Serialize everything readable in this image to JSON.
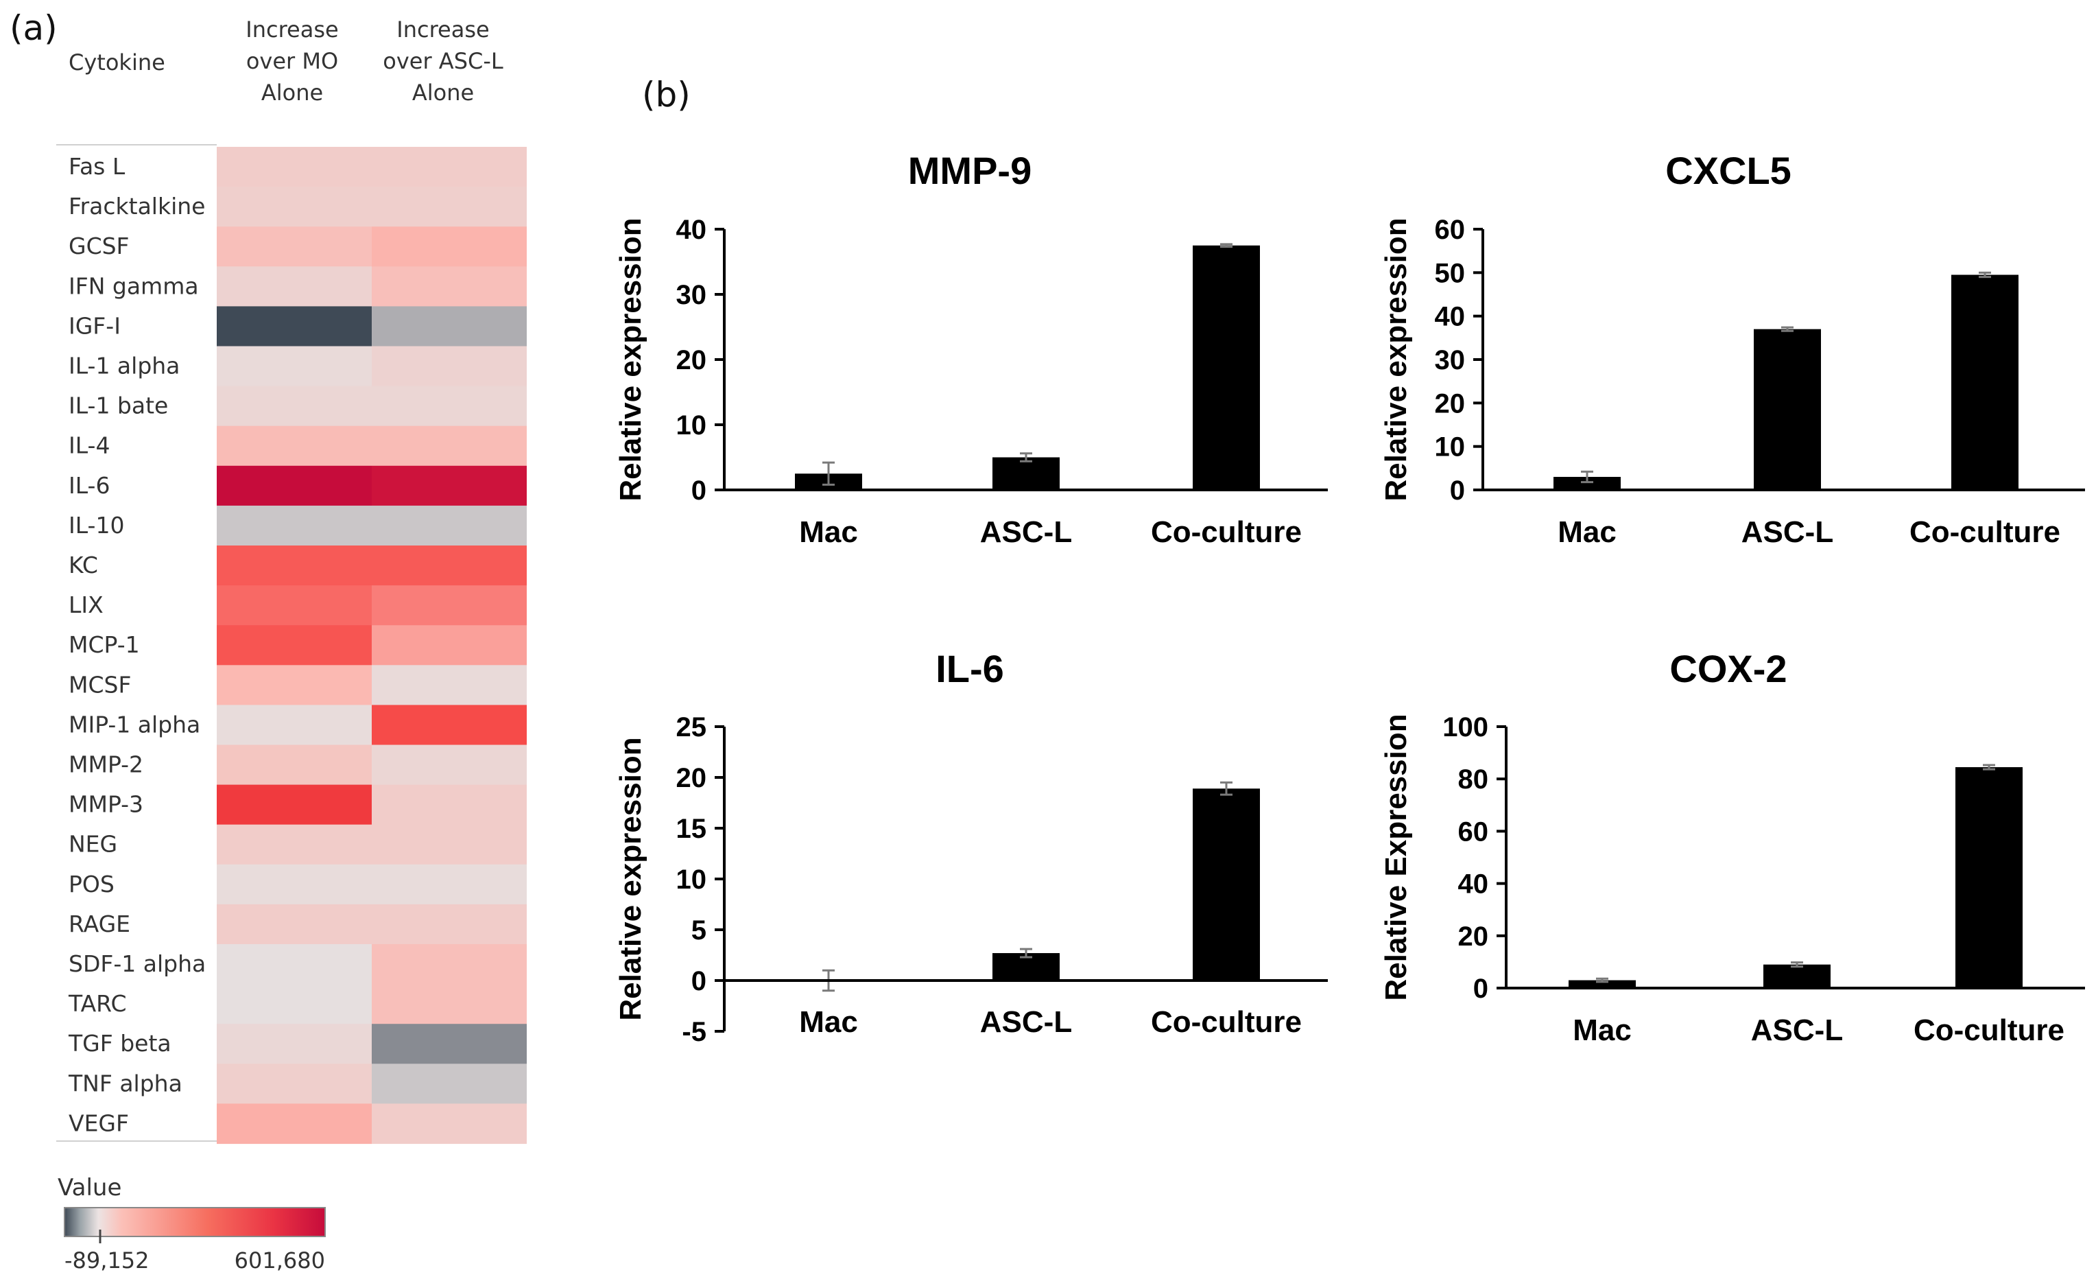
{
  "panel_a_label": "(a)",
  "panel_b_label": "(b)",
  "chart_data": [
    {
      "type": "heatmap",
      "title": "",
      "row_header": "Cytokine",
      "columns": [
        "Increase over MO Alone",
        "Increase over ASC-L Alone"
      ],
      "rows": [
        "Fas L",
        "Fracktalkine",
        "GCSF",
        "IFN gamma",
        "IGF-I",
        "IL-1 alpha",
        "IL-1 bate",
        "IL-4",
        "IL-6",
        "IL-10",
        "KC",
        "LIX",
        "MCP-1",
        "MCSF",
        "MIP-1 alpha",
        "MMP-2",
        "MMP-3",
        "NEG",
        "POS",
        "RAGE",
        "SDF-1 alpha",
        "TARC",
        "TGF beta",
        "TNF alpha",
        "VEGF"
      ],
      "values": [
        [
          30000,
          30000
        ],
        [
          25000,
          25000
        ],
        [
          50000,
          70000
        ],
        [
          20000,
          50000
        ],
        [
          -89152,
          -30000
        ],
        [
          8000,
          20000
        ],
        [
          15000,
          15000
        ],
        [
          55000,
          55000
        ],
        [
          601680,
          560000
        ],
        [
          -15000,
          -15000
        ],
        [
          250000,
          250000
        ],
        [
          220000,
          180000
        ],
        [
          260000,
          110000
        ],
        [
          60000,
          8000
        ],
        [
          5000,
          280000
        ],
        [
          40000,
          15000
        ],
        [
          340000,
          30000
        ],
        [
          30000,
          30000
        ],
        [
          5000,
          5000
        ],
        [
          30000,
          30000
        ],
        [
          0,
          50000
        ],
        [
          0,
          50000
        ],
        [
          12000,
          -50000
        ],
        [
          25000,
          -15000
        ],
        [
          80000,
          30000
        ]
      ],
      "legend": {
        "title": "Value",
        "min_label": "-89,152",
        "max_label": "601,680",
        "min": -89152,
        "max": 601680
      },
      "colors": {
        "low": "#3f4a56",
        "mid": "#e6dfdf",
        "light_red": "#fbb9b2",
        "red": "#f6413f",
        "high": "#c60c3b"
      }
    },
    {
      "type": "bar",
      "title": "MMP-9",
      "ylabel": "Relative expression",
      "categories": [
        "Mac",
        "ASC-L",
        "Co-culture"
      ],
      "values": [
        2.5,
        5.0,
        37.5
      ],
      "errors": [
        1.7,
        0.6,
        0.2
      ],
      "ylim": [
        0,
        40
      ],
      "yticks": [
        0,
        10,
        20,
        30,
        40
      ]
    },
    {
      "type": "bar",
      "title": "CXCL5",
      "ylabel": "Relative expression",
      "categories": [
        "Mac",
        "ASC-L",
        "Co-culture"
      ],
      "values": [
        3.0,
        37.0,
        49.5
      ],
      "errors": [
        1.2,
        0.4,
        0.5
      ],
      "ylim": [
        0,
        60
      ],
      "yticks": [
        0,
        10,
        20,
        30,
        40,
        50,
        60
      ]
    },
    {
      "type": "bar",
      "title": "IL-6",
      "ylabel": "Relative expression",
      "categories": [
        "Mac",
        "ASC-L",
        "Co-culture"
      ],
      "values": [
        0.0,
        2.7,
        18.9
      ],
      "errors": [
        1.0,
        0.4,
        0.6
      ],
      "ylim": [
        -5,
        25
      ],
      "yticks": [
        -5,
        0,
        5,
        10,
        15,
        20,
        25
      ]
    },
    {
      "type": "bar",
      "title": "COX-2",
      "ylabel": "Relative Expression",
      "categories": [
        "Mac",
        "ASC-L",
        "Co-culture"
      ],
      "values": [
        3.0,
        9.0,
        84.5
      ],
      "errors": [
        0.6,
        0.8,
        0.8
      ],
      "ylim": [
        0,
        100
      ],
      "yticks": [
        0,
        20,
        40,
        60,
        80,
        100
      ]
    }
  ]
}
